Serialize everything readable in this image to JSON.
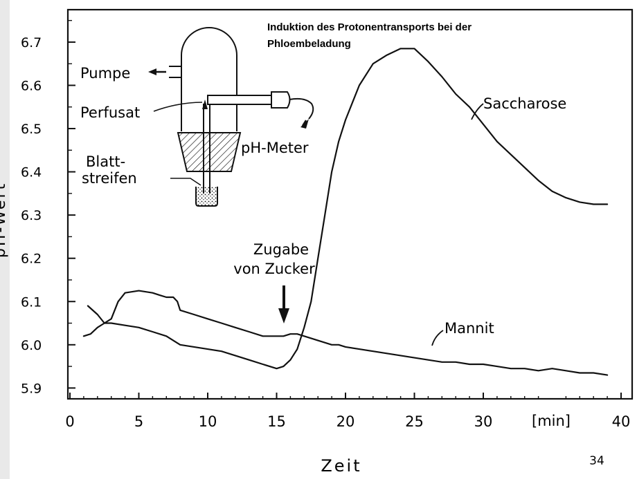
{
  "slide": {
    "page_number": "34"
  },
  "chart_data": {
    "type": "line",
    "title": "Induktion des Protonentransports bei der Phloembeladung",
    "xlabel": "Zeit",
    "ylabel": "pH-Wert",
    "x_unit_label": "[min]",
    "xlim": [
      0,
      40
    ],
    "ylim": [
      5.875,
      6.775
    ],
    "x_ticks": [
      0,
      5,
      10,
      15,
      20,
      25,
      30,
      40
    ],
    "x_tick_labels": [
      "0",
      "5",
      "10",
      "15",
      "20",
      "25",
      "30",
      "40"
    ],
    "y_ticks": [
      5.9,
      6.0,
      6.1,
      6.2,
      6.3,
      6.4,
      6.5,
      6.6,
      6.7
    ],
    "y_tick_labels": [
      "5.9",
      "6.0",
      "6.1",
      "6.2",
      "6.3",
      "6.4",
      "6.5",
      "6.6",
      "6.7"
    ],
    "grid": false,
    "series": [
      {
        "name": "Saccharose",
        "x": [
          1.3,
          2.0,
          2.5,
          3.0,
          3.5,
          4.0,
          5.0,
          6.0,
          6.5,
          7.0,
          7.5,
          7.8,
          8.0,
          9.0,
          10.0,
          11.0,
          12.0,
          13.0,
          14.0,
          15.0,
          15.5,
          16.0,
          16.5,
          17.0,
          17.5,
          18.0,
          18.5,
          19.0,
          19.5,
          20.0,
          21.0,
          22.0,
          23.0,
          24.0,
          25.0,
          26.0,
          27.0,
          28.0,
          29.0,
          30.0,
          31.0,
          32.0,
          33.0,
          34.0,
          35.0,
          36.0,
          37.0,
          38.0,
          39.0
        ],
        "y": [
          6.09,
          6.07,
          6.05,
          6.06,
          6.1,
          6.12,
          6.125,
          6.12,
          6.115,
          6.11,
          6.11,
          6.1,
          6.08,
          6.07,
          6.06,
          6.05,
          6.04,
          6.03,
          6.02,
          6.02,
          6.02,
          6.025,
          6.025,
          6.02,
          6.015,
          6.01,
          6.005,
          6.0,
          6.0,
          5.995,
          5.99,
          5.985,
          5.98,
          5.975,
          5.97,
          5.965,
          5.96,
          5.96,
          5.955,
          5.955,
          5.95,
          5.945,
          5.945,
          5.94,
          5.945,
          5.94,
          5.935,
          5.935,
          5.93
        ]
      },
      {
        "name": "Mannit",
        "x": [
          1.0,
          1.5,
          2.0,
          2.5,
          3.0,
          4.0,
          5.0,
          6.0,
          7.0,
          8.0,
          9.0,
          10.0,
          11.0,
          12.0,
          13.0,
          14.0,
          15.0,
          15.5,
          16.0,
          16.5,
          17.0,
          17.5,
          18.0,
          18.5,
          19.0,
          19.5,
          20.0,
          21.0,
          22.0,
          23.0,
          24.0,
          25.0,
          26.0,
          27.0,
          28.0,
          29.0,
          30.0,
          31.0,
          32.0,
          33.0,
          34.0,
          35.0,
          36.0,
          37.0,
          38.0,
          39.0
        ],
        "y": [
          6.02,
          6.025,
          6.04,
          6.05,
          6.05,
          6.045,
          6.04,
          6.03,
          6.02,
          6.0,
          5.995,
          5.99,
          5.985,
          5.975,
          5.965,
          5.955,
          5.945,
          5.95,
          5.965,
          5.99,
          6.04,
          6.1,
          6.2,
          6.3,
          6.4,
          6.47,
          6.52,
          6.6,
          6.65,
          6.67,
          6.685,
          6.685,
          6.655,
          6.62,
          6.58,
          6.55,
          6.51,
          6.47,
          6.44,
          6.41,
          6.38,
          6.355,
          6.34,
          6.33,
          6.325,
          6.325
        ]
      }
    ],
    "series_labels": [
      "Saccharose",
      "Mannit"
    ],
    "annotations": {
      "arrow_label_line1": "Zugabe",
      "arrow_label_line2": "von Zucker",
      "arrow_x": 15.2
    },
    "inset": {
      "pump_label": "Pumpe",
      "perfusate_label": "Perfusat",
      "ph_meter_label": "pH-Meter",
      "leaf_label_line1": "Blatt-",
      "leaf_label_line2": "streifen"
    }
  }
}
